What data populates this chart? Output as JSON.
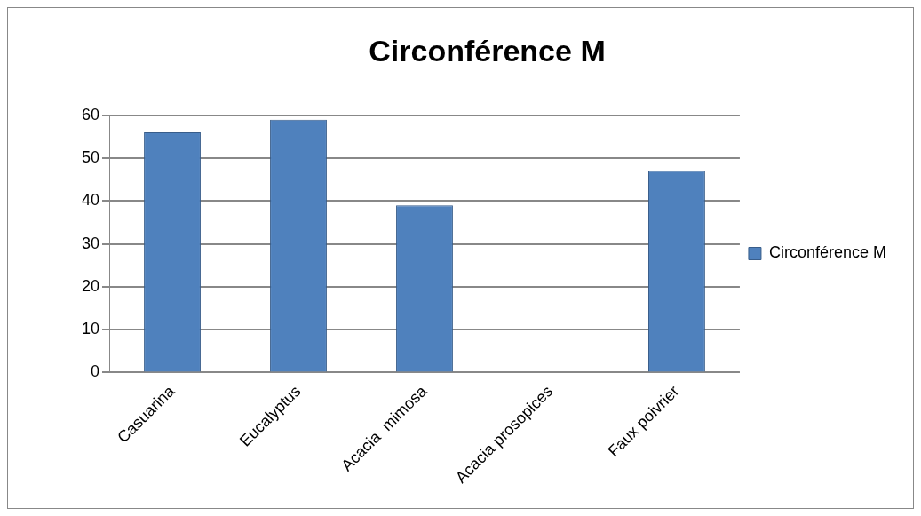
{
  "chart_data": {
    "type": "bar",
    "title": "Circonférence M",
    "categories": [
      "Casuarina",
      "Eucalyptus",
      "Acacia  mimosa",
      "Acacia prosopices",
      "Faux poivrier"
    ],
    "series": [
      {
        "name": "Circonférence M",
        "color": "#4f81bd",
        "values": [
          56,
          59,
          39,
          0,
          47
        ]
      }
    ],
    "ylim": [
      0,
      60
    ],
    "yticks": [
      0,
      10,
      20,
      30,
      40,
      50,
      60
    ],
    "grid": "y",
    "legend": "right"
  }
}
